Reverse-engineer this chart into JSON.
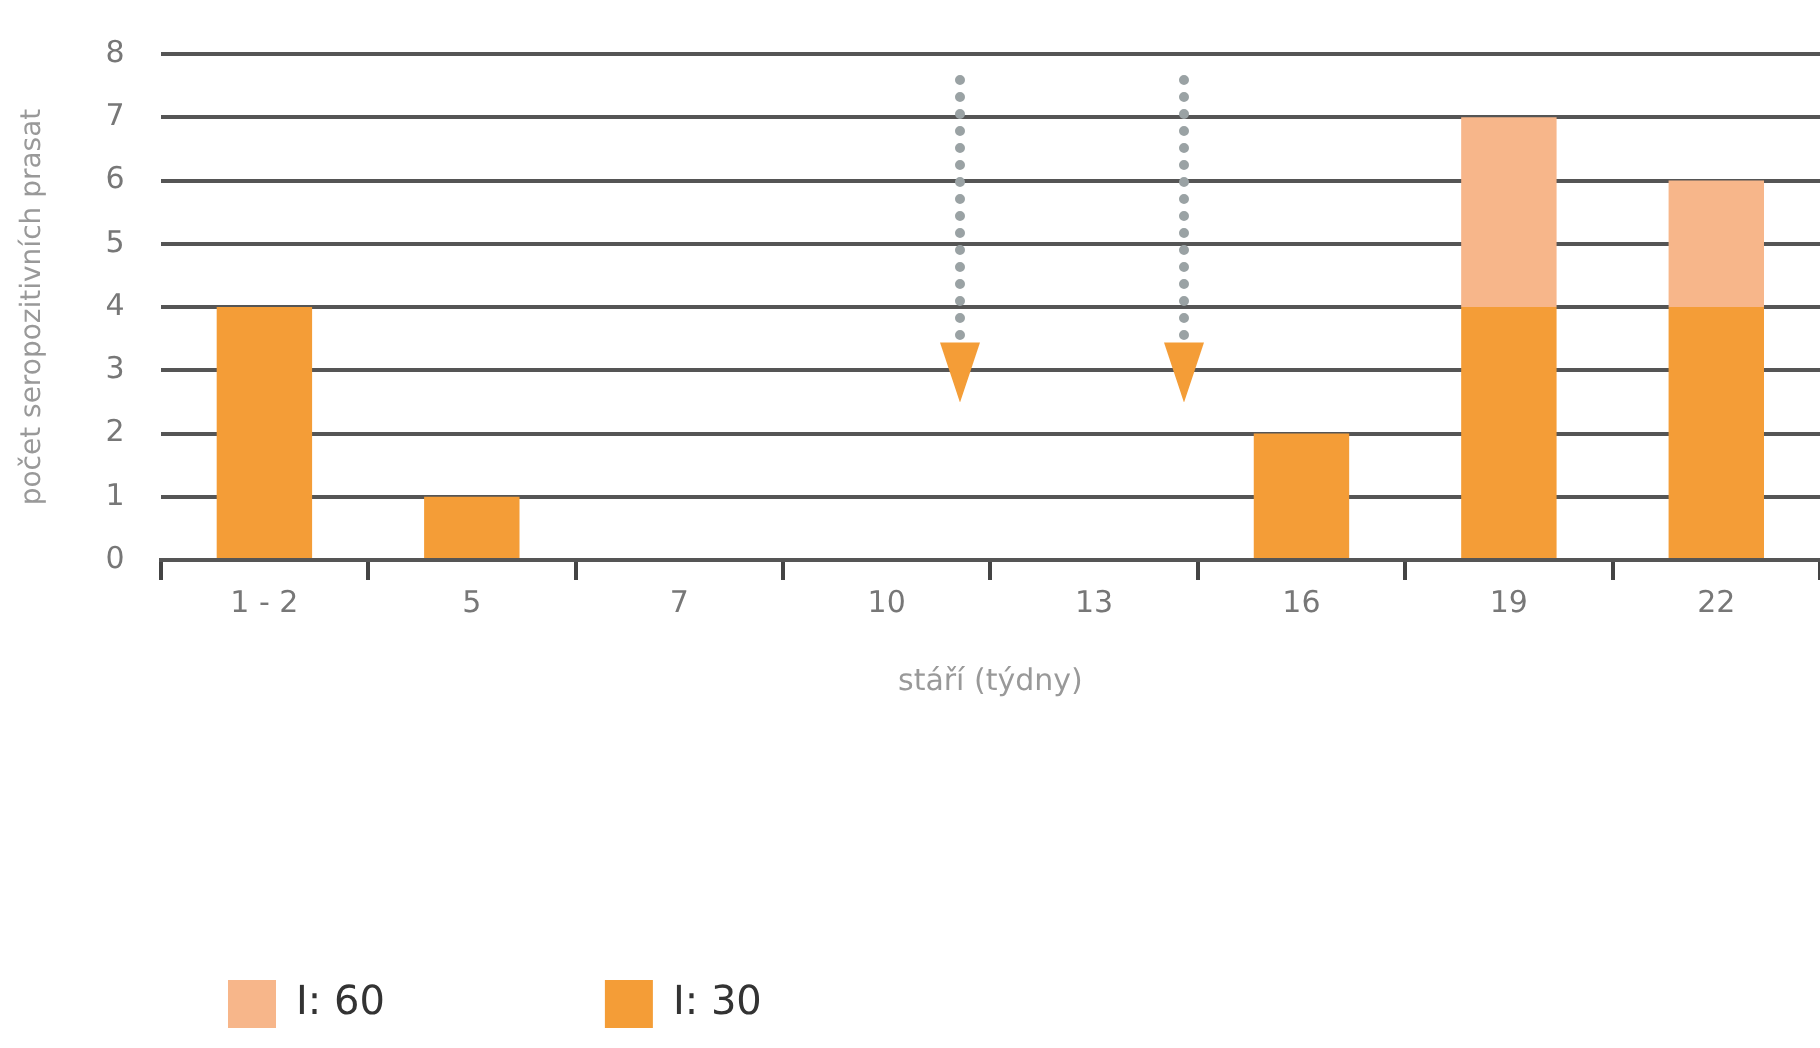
{
  "chart_data": {
    "type": "bar",
    "stacked": true,
    "xlabel": "stáří (týdny)",
    "ylabel": "počet seropozitivních prasat",
    "categories": [
      "1 - 2",
      "5",
      "7",
      "10",
      "13",
      "16",
      "19",
      "22"
    ],
    "series": [
      {
        "name": "I: 30",
        "color": "#f49d37",
        "values": [
          4,
          1,
          0,
          0,
          0,
          2,
          4,
          4
        ]
      },
      {
        "name": "I: 60",
        "color": "#f7b68a",
        "values": [
          0,
          0,
          0,
          0,
          0,
          0,
          3,
          2
        ]
      }
    ],
    "ylim": [
      0,
      8
    ],
    "yticks": [
      0,
      1,
      2,
      3,
      4,
      5,
      6,
      7,
      8
    ],
    "grid": "y",
    "legend": "bottom left"
  }
}
